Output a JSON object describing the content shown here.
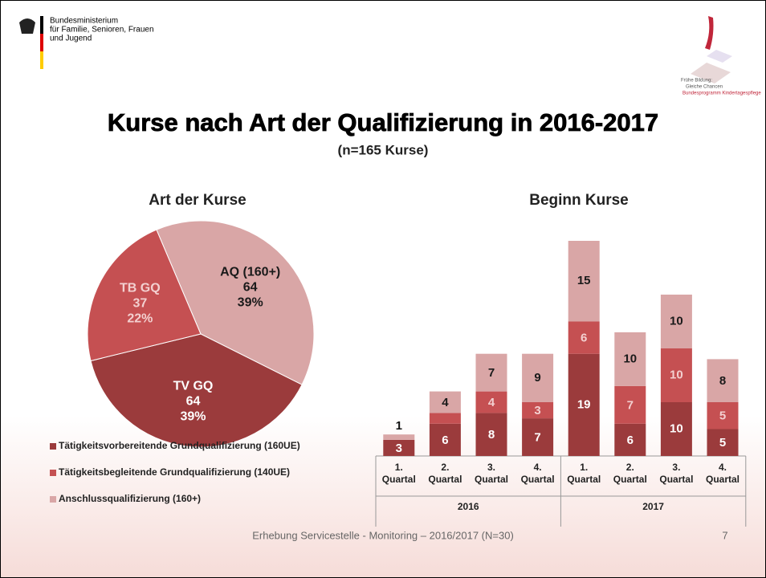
{
  "header": {
    "ministry": [
      "Bundesministerium",
      "für Familie, Senioren, Frauen",
      "und Jugend"
    ],
    "program": [
      "Frühe Bildung:",
      "Gleiche Chancen",
      "Bundesprogramm Kindertagespflege"
    ],
    "title": "Kurse nach Art der Qualifizierung in 2016-2017",
    "subtitle": "(n=165 Kurse)"
  },
  "chart_data": [
    {
      "type": "pie",
      "title": "Art der Kurse",
      "categories": [
        "AQ (160+)",
        "TV GQ",
        "TB GQ"
      ],
      "values": [
        64,
        64,
        37
      ],
      "percent_labels": [
        "39%",
        "39%",
        "22%"
      ],
      "colors": [
        "#d9a6a6",
        "#9b3b3c",
        "#c55052"
      ],
      "label_colors": [
        "#1a1a1a",
        "#ffffff",
        "#f3d0d0"
      ]
    },
    {
      "type": "stacked_bar",
      "title": "Beginn Kurse",
      "categories": [
        "1. Quartal",
        "2. Quartal",
        "3. Quartal",
        "4. Quartal",
        "1. Quartal",
        "2. Quartal",
        "3. Quartal",
        "4. Quartal"
      ],
      "groups": [
        {
          "label": "2016",
          "size": 4
        },
        {
          "label": "2017",
          "size": 4
        }
      ],
      "series": [
        {
          "name": "Tätigkeitsvorbereitende Grundqualifizierung (160UE)",
          "color": "#9b3b3c",
          "label_color": "#ffffff",
          "values": [
            3,
            6,
            8,
            7,
            19,
            6,
            10,
            5
          ]
        },
        {
          "name": "Tätigkeitsbegleitende Grundqualifizierung (140UE)",
          "color": "#c55052",
          "label_color": "#f3d0d0",
          "values": [
            null,
            2,
            4,
            3,
            6,
            7,
            10,
            5
          ]
        },
        {
          "name": "Anschlussqualifizierung (160+)",
          "color": "#d9a6a6",
          "label_color": "#1a1a1a",
          "values": [
            1,
            4,
            7,
            9,
            15,
            10,
            10,
            8
          ]
        }
      ]
    }
  ],
  "footer": {
    "text": "Erhebung Servicestelle - Monitoring – 2016/2017 (N=30)",
    "page": "7"
  }
}
